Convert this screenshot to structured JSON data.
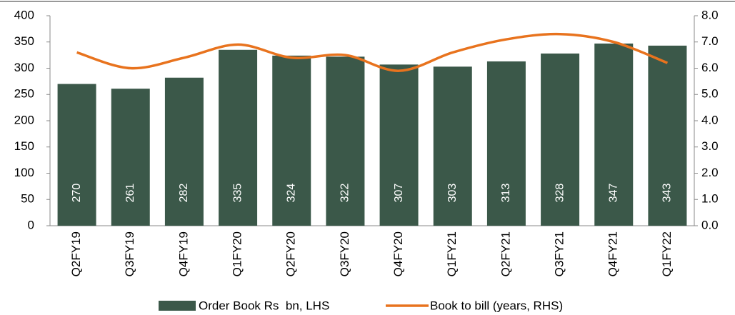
{
  "chart_data": {
    "type": "bar_line",
    "categories": [
      "Q2FY19",
      "Q3FY19",
      "Q4FY19",
      "Q1FY20",
      "Q2FY20",
      "Q3FY20",
      "Q4FY20",
      "Q1FY21",
      "Q2FY21",
      "Q3FY21",
      "Q4FY21",
      "Q1FY22"
    ],
    "series": [
      {
        "name": "Order Book Rs  bn, LHS",
        "type": "bar",
        "color": "#3b5849",
        "values": [
          270,
          261,
          282,
          335,
          324,
          322,
          307,
          303,
          313,
          328,
          347,
          343
        ]
      },
      {
        "name": "Book to bill (years, RHS)",
        "type": "line",
        "axis": "y2",
        "color": "#e8731e",
        "values": [
          6.6,
          6.0,
          6.4,
          6.9,
          6.4,
          6.5,
          5.9,
          6.6,
          7.1,
          7.3,
          7.0,
          6.2
        ]
      }
    ],
    "ylim": [
      0,
      400
    ],
    "yticks": [
      0,
      50,
      100,
      150,
      200,
      250,
      300,
      350,
      400
    ],
    "y2lim": [
      0,
      8
    ],
    "y2ticks": [
      {
        "value": 0,
        "label": "0.0"
      },
      {
        "value": 1,
        "label": "1.0"
      },
      {
        "value": 2,
        "label": "2.0"
      },
      {
        "value": 3,
        "label": "3.0"
      },
      {
        "value": 4,
        "label": "4.0"
      },
      {
        "value": 5,
        "label": "5.0"
      },
      {
        "value": 6,
        "label": "6.0"
      },
      {
        "value": 7,
        "label": "7.0"
      },
      {
        "value": 8,
        "label": "8.0"
      }
    ],
    "legend": "bottom"
  }
}
